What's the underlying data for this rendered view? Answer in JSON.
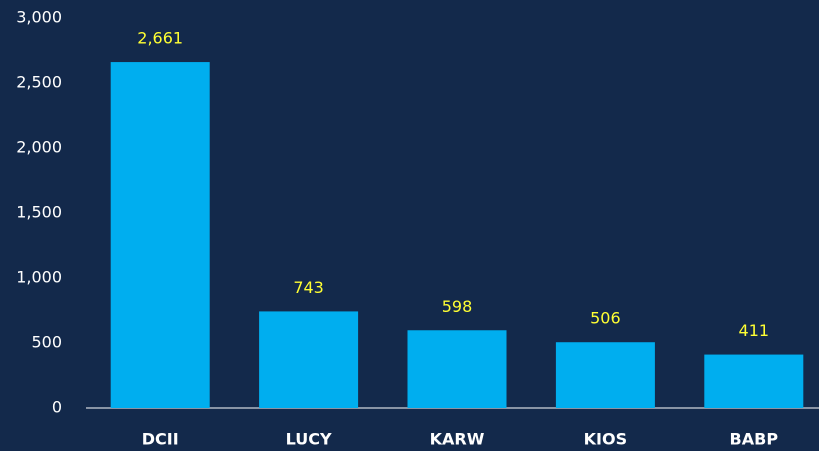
{
  "chart_data": {
    "type": "bar",
    "categories": [
      "DCII",
      "LUCY",
      "KARW",
      "KIOS",
      "BABP"
    ],
    "values": [
      2661,
      743,
      598,
      506,
      411
    ],
    "value_labels": [
      "2,661",
      "743",
      "598",
      "506",
      "411"
    ],
    "color": "#00aeef",
    "ylim": [
      0,
      3000
    ],
    "yticks": [
      0,
      500,
      {
        "value": 1000,
        "label": "1,000"
      },
      {
        "value": 1500,
        "label": "1,500"
      },
      {
        "value": 2000,
        "label": "2,000"
      },
      {
        "value": 2500,
        "label": "2,500"
      },
      {
        "value": 3000,
        "label": "3,000"
      }
    ],
    "grid": false
  }
}
